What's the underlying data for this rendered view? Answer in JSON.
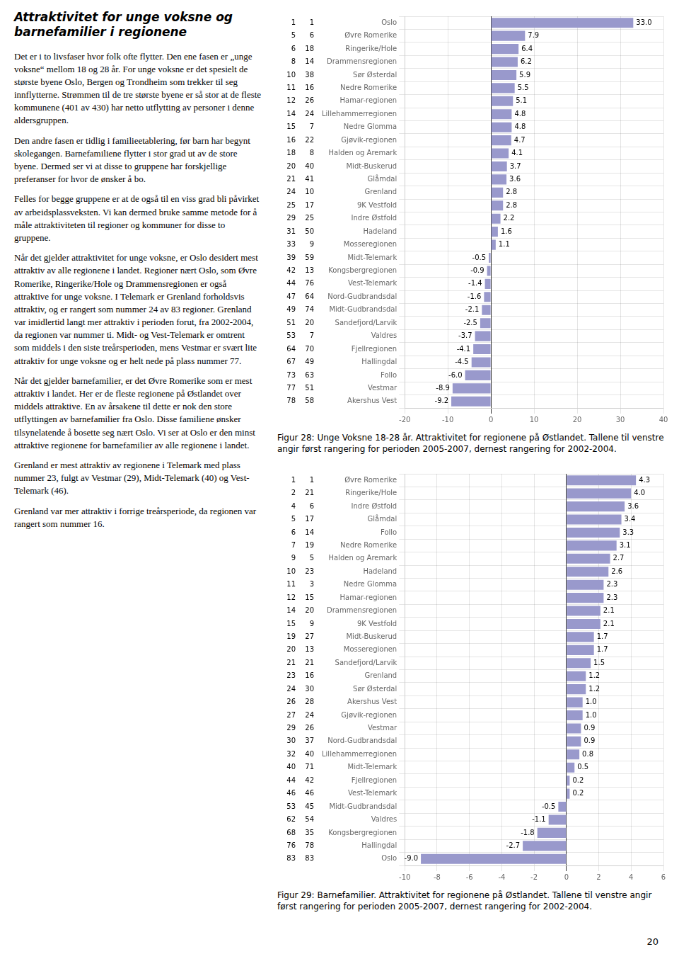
{
  "title": "Attraktivitet for unge voksne og\nbarnefamilier i regionene",
  "body_paragraphs": [
    "Det er i to livsfaser hvor folk ofte flytter. Den ene fasen er „unge voksne“ mellom 18 og 28 år. For unge voksne er det spesielt de største byene Oslo, Bergen og Trondheim som trekker til seg innflytterne. Strømmen til de tre største byene er så stor at de fleste kommunene (401 av 430) har netto utflytting av personer i denne aldersgruppen.",
    "Den andre fasen er tidlig i familieetablering, før barn har begynt skolegangen. Barnefamiliene flytter i stor grad ut av de store byene. Dermed ser vi at disse to gruppene har forskjellige preferanser for hvor de ønsker å bo.",
    "Felles for begge gruppene er at de også til en viss grad bli påvirket av arbeidsplassveksten. Vi kan dermed bruke samme metode for å måle attraktiviteten til regioner og kommuner for disse to gruppene.",
    "Når det gjelder attraktivitet for unge voksne, er Oslo desidert mest attraktiv av alle regionene i landet. Regioner nært Oslo, som Øvre Romerike, Ringerike/Hole og Drammensregionen er også attraktive for unge voksne. I Telemark er Grenland forholdsvis attraktiv, og er rangert som nummer 24 av 83 regioner. Grenland var imidlertid langt mer attraktiv i perioden forut, fra 2002-2004, da regionen var nummer ti. Midt- og Vest-Telemark er omtrent som middels i den siste treårsperioden, mens Vestmar er svært lite attraktiv for unge voksne og er helt nede på plass nummer 77.",
    "Når det gjelder barnefamilier, er det Øvre Romerike som er mest attraktiv i landet. Her er de fleste regionene på Østlandet over middels attraktive. En av årsakene til dette er nok den store utflyttingen av barnefamilier fra Oslo. Disse familiene ønsker tilsynelatende å bosette seg nært Oslo. Vi ser at Oslo er den minst attraktive regionene for barnefamilier av alle regionene i landet.",
    "Grenland er mest attraktiv av regionene i Telemark med plass nummer 23, fulgt av Vestmar (29), Midt-Telemark (40) og Vest-Telemark (46).",
    "Grenland var mer attraktiv i forrige treårsperiode, da regionen var rangert som nummer 16."
  ],
  "page_number": "20",
  "chart_data": [
    {
      "type": "bar",
      "orientation": "horizontal",
      "color": "#9999cc",
      "grid": true,
      "data_labels": true,
      "caption": "Figur 28: Unge Voksne 18-28 år. Attraktivitet for regionene på Østlandet.   Tallene til venstre angir først rangering for perioden 2005-2007, dernest rangering for 2002-2004.",
      "xlim": [
        -20,
        40
      ],
      "xticks": [
        -20,
        -10,
        0,
        10,
        20,
        30,
        40
      ],
      "categories": [
        "Oslo",
        "Øvre Romerike",
        "Ringerike/Hole",
        "Drammensregionen",
        "Sør Østerdal",
        "Nedre Romerike",
        "Hamar-regionen",
        "Lillehammerregionen",
        "Nedre Glomma",
        "Gjøvik-regionen",
        "Halden og Aremark",
        "Midt-Buskerud",
        "Glåmdal",
        "Grenland",
        "9K Vestfold",
        "Indre Østfold",
        "Hadeland",
        "Mosseregionen",
        "Midt-Telemark",
        "Kongsbergregionen",
        "Vest-Telemark",
        "Nord-Gudbrandsdal",
        "Midt-Gudbrandsdal",
        "Sandefjord/Larvik",
        "Valdres",
        "Fjellregionen",
        "Hallingdal",
        "Follo",
        "Vestmar",
        "Akershus Vest"
      ],
      "values": [
        33.0,
        7.9,
        6.4,
        6.2,
        5.9,
        5.5,
        5.1,
        4.8,
        4.8,
        4.7,
        4.1,
        3.7,
        3.6,
        2.8,
        2.8,
        2.2,
        1.6,
        1.1,
        -0.5,
        -0.9,
        -1.4,
        -1.6,
        -2.1,
        -2.5,
        -3.7,
        -4.1,
        -4.5,
        -6.0,
        -8.9,
        -9.2
      ],
      "value_labels": [
        "33.0",
        "7.9",
        "6.4",
        "6.2",
        "5.9",
        "5.5",
        "5.1",
        "4.8",
        "4.8",
        "4.7",
        "4.1",
        "3.7",
        "3.6",
        "2.8",
        "2.8",
        "2.2",
        "1.6",
        "1.1",
        "-0.5",
        "-0.9",
        "-1.4",
        "-1.6",
        "-2.1",
        "-2.5",
        "-3.7",
        "-4.1",
        "-4.5",
        "-6.0",
        "-8.9",
        "-9.2"
      ],
      "rank_2005_2007": [
        "1",
        "5",
        "6",
        "8",
        "10",
        "11",
        "12",
        "14",
        "15",
        "16",
        "18",
        "20",
        "21",
        "24",
        "25",
        "29",
        "31",
        "33",
        "39",
        "42",
        "44",
        "47",
        "49",
        "51",
        "53",
        "64",
        "67",
        "73",
        "77",
        "78"
      ],
      "rank_2002_2004": [
        "1",
        "6",
        "18",
        "14",
        "38",
        "16",
        "26",
        "24",
        "7",
        "22",
        "8",
        "40",
        "41",
        "10",
        "17",
        "25",
        "50",
        "9",
        "59",
        "13",
        "76",
        "64",
        "74",
        "20",
        "7",
        "70",
        "49",
        "63",
        "51",
        "58"
      ]
    },
    {
      "type": "bar",
      "orientation": "horizontal",
      "color": "#9999cc",
      "grid": true,
      "data_labels": true,
      "caption": "Figur 29: Barnefamilier. Attraktivitet for regionene på Østlandet.   Tallene til venstre angir først rangering for perioden 2005-2007, dernest rangering for 2002-2004.",
      "xlim": [
        -10,
        6
      ],
      "xticks": [
        -10,
        -8,
        -6,
        -4,
        -2,
        0,
        2,
        4,
        6
      ],
      "categories": [
        "Øvre Romerike",
        "Ringerike/Hole",
        "Indre Østfold",
        "Glåmdal",
        "Follo",
        "Nedre Romerike",
        "Halden og Aremark",
        "Hadeland",
        "Nedre Glomma",
        "Hamar-regionen",
        "Drammensregionen",
        "9K Vestfold",
        "Midt-Buskerud",
        "Mosseregionen",
        "Sandefjord/Larvik",
        "Grenland",
        "Sør Østerdal",
        "Akershus Vest",
        "Gjøvik-regionen",
        "Vestmar",
        "Nord-Gudbrandsdal",
        "Lillehammerregionen",
        "Midt-Telemark",
        "Fjellregionen",
        "Vest-Telemark",
        "Midt-Gudbrandsdal",
        "Valdres",
        "Kongsbergregionen",
        "Hallingdal",
        "Oslo"
      ],
      "values": [
        4.3,
        4.0,
        3.6,
        3.4,
        3.3,
        3.1,
        2.7,
        2.6,
        2.3,
        2.3,
        2.1,
        2.1,
        1.7,
        1.7,
        1.5,
        1.2,
        1.2,
        1.0,
        1.0,
        0.9,
        0.9,
        0.8,
        0.5,
        0.2,
        0.2,
        -0.5,
        -1.1,
        -1.8,
        -2.7,
        -9.0
      ],
      "value_labels": [
        "4.3",
        "4.0",
        "3.6",
        "3.4",
        "3.3",
        "3.1",
        "2.7",
        "2.6",
        "2.3",
        "2.3",
        "2.1",
        "2.1",
        "1.7",
        "1.7",
        "1.5",
        "1.2",
        "1.2",
        "1.0",
        "1.0",
        "0.9",
        "0.9",
        "0.8",
        "0.5",
        "0.2",
        "0.2",
        "-0.5",
        "-1.1",
        "-1.8",
        "-2.7",
        "-9.0"
      ],
      "rank_2005_2007": [
        "1",
        "2",
        "4",
        "5",
        "6",
        "7",
        "9",
        "10",
        "11",
        "12",
        "14",
        "15",
        "19",
        "20",
        "21",
        "23",
        "24",
        "26",
        "27",
        "29",
        "30",
        "32",
        "40",
        "44",
        "46",
        "53",
        "62",
        "68",
        "76",
        "83"
      ],
      "rank_2002_2004": [
        "1",
        "21",
        "6",
        "17",
        "14",
        "19",
        "5",
        "23",
        "3",
        "15",
        "20",
        "9",
        "27",
        "13",
        "21",
        "16",
        "30",
        "28",
        "24",
        "26",
        "37",
        "40",
        "71",
        "42",
        "46",
        "45",
        "54",
        "35",
        "78",
        "83"
      ]
    }
  ]
}
